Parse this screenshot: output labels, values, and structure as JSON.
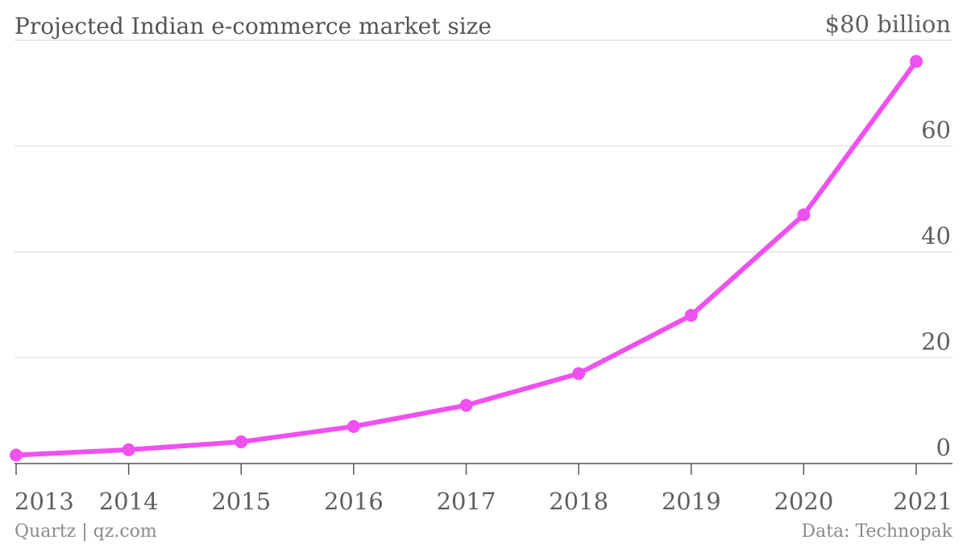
{
  "chart_data": {
    "type": "line",
    "title": "Projected Indian e-commerce market size",
    "unit_label": "$80 billion",
    "x": [
      "2013",
      "2014",
      "2015",
      "2016",
      "2017",
      "2018",
      "2019",
      "2020",
      "2021"
    ],
    "series": [
      {
        "values": [
          1.6,
          2.6,
          4.1,
          7.0,
          11.0,
          17.0,
          28.0,
          47.0,
          76.0
        ],
        "color": "#f050f0"
      }
    ],
    "yticks": [
      0,
      20,
      40,
      60,
      80
    ],
    "ytick_labels": [
      "0",
      "20",
      "40",
      "60",
      "$80 billion"
    ],
    "ylim": [
      0,
      80
    ],
    "grid": true,
    "source": "Data: Technopak",
    "credit": "Quartz | qz.com"
  }
}
